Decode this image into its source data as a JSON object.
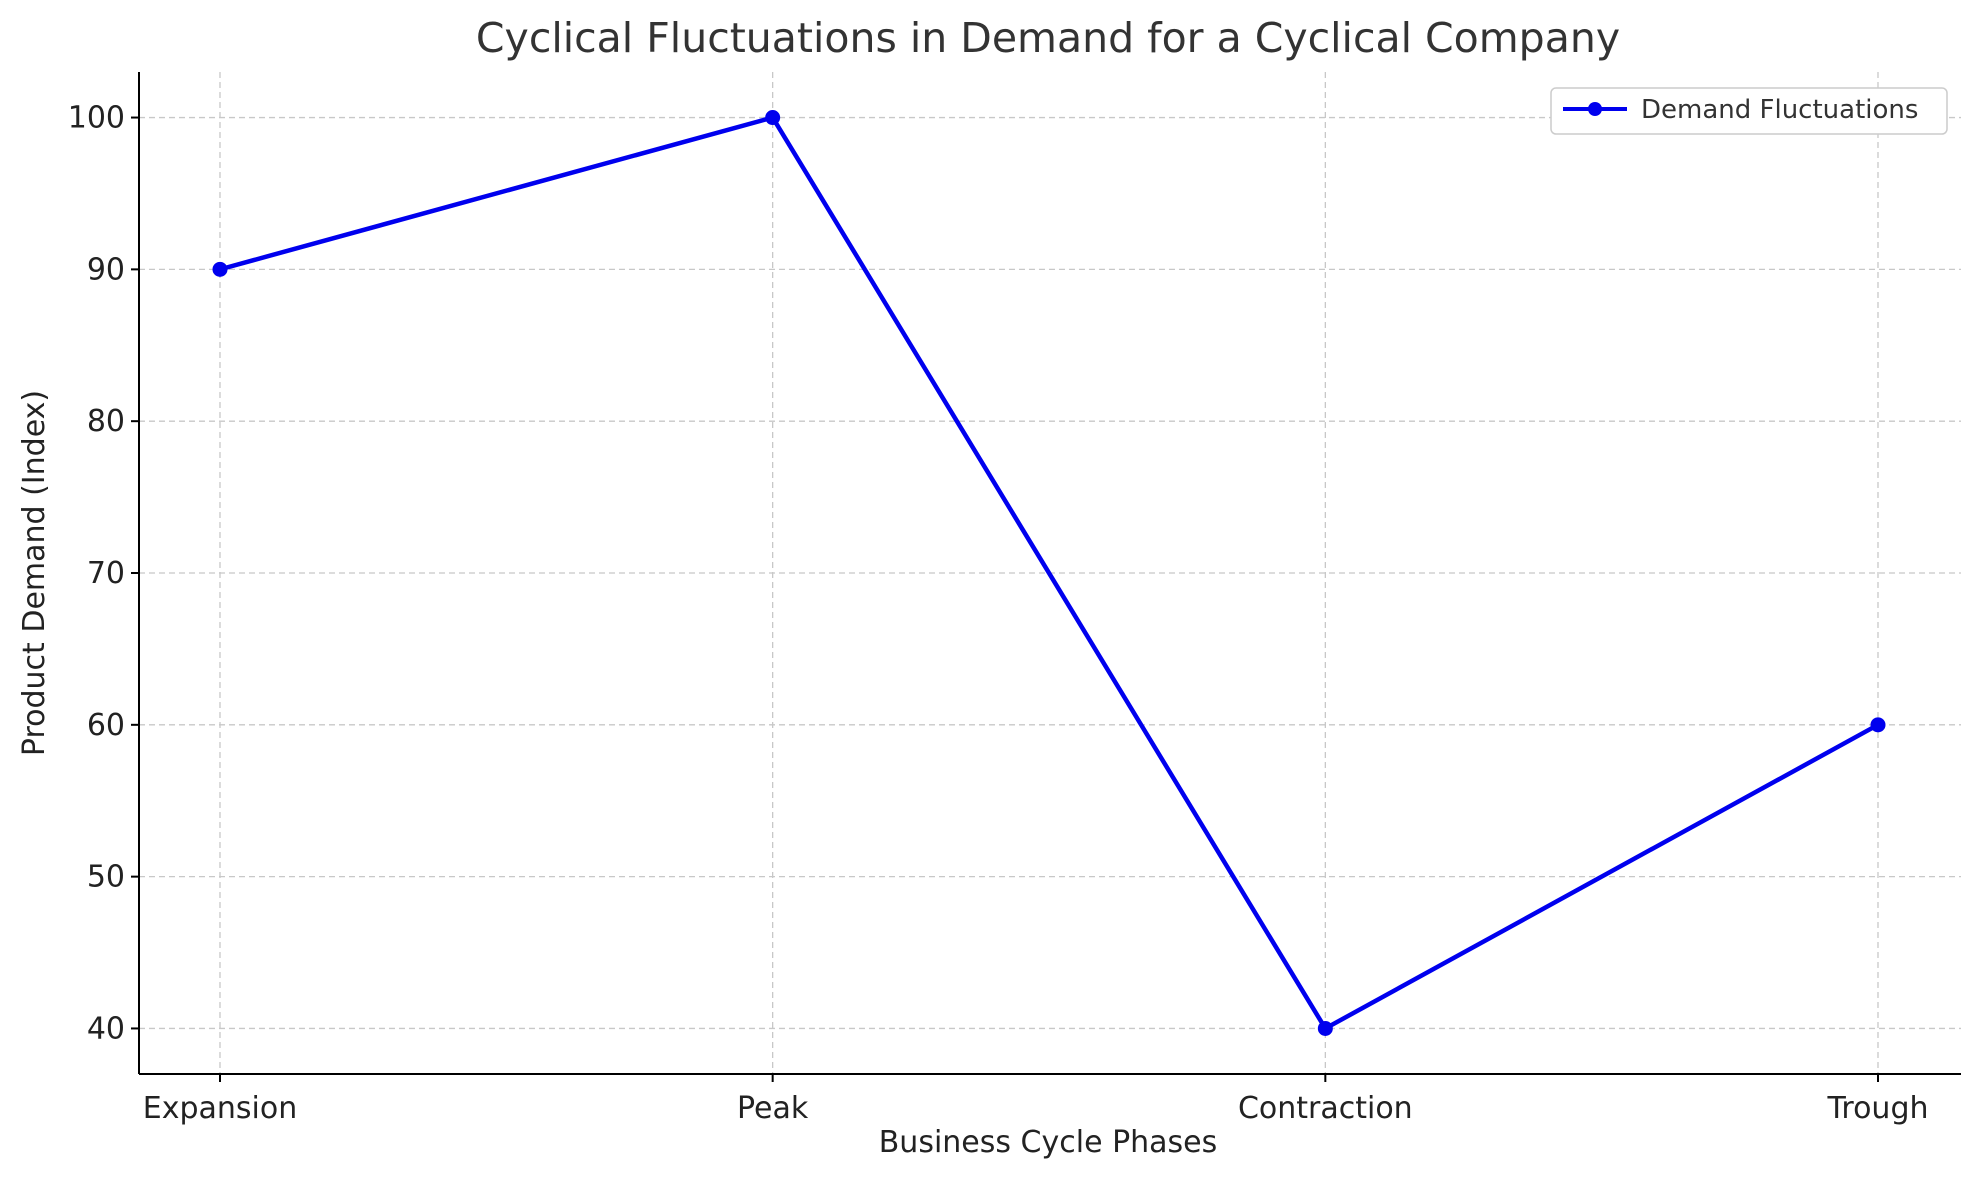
{
  "chart_data": {
    "type": "line",
    "title": "Cyclical Fluctuations in Demand for a Cyclical Company",
    "xlabel": "Business Cycle Phases",
    "ylabel": "Product Demand (Index)",
    "categories": [
      "Expansion",
      "Peak",
      "Contraction",
      "Trough"
    ],
    "series": [
      {
        "name": "Demand Fluctuations",
        "values": [
          90,
          100,
          40,
          60
        ],
        "color": "#0000ee"
      }
    ],
    "ylim": [
      37,
      103
    ],
    "yticks": [
      40,
      50,
      60,
      70,
      80,
      90,
      100
    ],
    "grid": true,
    "legend_position": "top-right",
    "marker": "circle"
  }
}
